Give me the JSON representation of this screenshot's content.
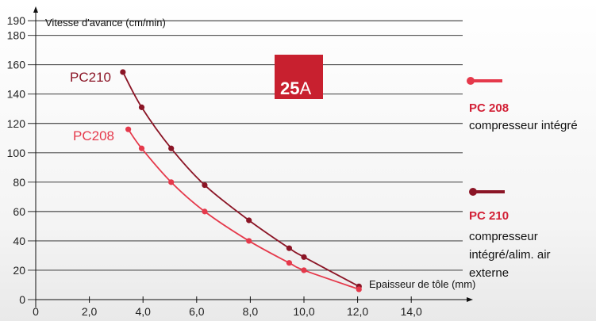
{
  "colors": {
    "pc210": "#8b1526",
    "pc208": "#e5394b",
    "badge_bg": "#c8202f",
    "grid": "#222222"
  },
  "chart_data": {
    "type": "line",
    "ylabel": "Vitesse d'avance (cm/min)",
    "xlabel": "Epaisseur de tôle (mm)",
    "xlim": [
      0,
      15
    ],
    "ylim": [
      0,
      190
    ],
    "x_ticks": [
      {
        "value": 0,
        "label": "0"
      },
      {
        "value": 2,
        "label": "2,0"
      },
      {
        "value": 4,
        "label": "4,0"
      },
      {
        "value": 6,
        "label": "6,0"
      },
      {
        "value": 8,
        "label": "8,0"
      },
      {
        "value": 10,
        "label": "10,0"
      },
      {
        "value": 12,
        "label": "12,0"
      },
      {
        "value": 14,
        "label": "14,0"
      }
    ],
    "y_ticks": [
      {
        "value": 0,
        "label": "0"
      },
      {
        "value": 20,
        "label": "20"
      },
      {
        "value": 40,
        "label": "40"
      },
      {
        "value": 60,
        "label": "60"
      },
      {
        "value": 80,
        "label": "80"
      },
      {
        "value": 100,
        "label": "100"
      },
      {
        "value": 120,
        "label": "120"
      },
      {
        "value": 140,
        "label": "140"
      },
      {
        "value": 160,
        "label": "160"
      },
      {
        "value": 180,
        "label": "180"
      },
      {
        "value": 190,
        "label": "190"
      }
    ],
    "grid": true,
    "series": [
      {
        "name": "PC210",
        "x": [
          3.25,
          3.95,
          5.05,
          6.3,
          7.95,
          9.45,
          10.0,
          12.05
        ],
        "y": [
          155,
          131,
          103,
          78,
          54,
          35,
          29,
          9
        ]
      },
      {
        "name": "PC208",
        "x": [
          3.45,
          3.95,
          5.05,
          6.3,
          7.95,
          9.45,
          10.0,
          12.05
        ],
        "y": [
          116,
          103,
          80,
          60,
          40,
          25,
          20,
          7
        ]
      }
    ],
    "badge": {
      "number": "25",
      "unit": "A"
    },
    "legend": [
      {
        "title": "PC 208",
        "lines": [
          "compresseur intégré"
        ]
      },
      {
        "title": "PC 210",
        "lines": [
          "compresseur",
          "intégré/alim. air",
          "externe"
        ]
      }
    ]
  }
}
